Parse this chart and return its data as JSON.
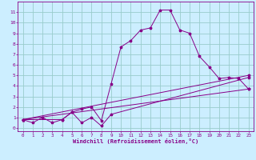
{
  "title": "",
  "xlabel": "Windchill (Refroidissement éolien,°C)",
  "ylabel": "",
  "background_color": "#cceeff",
  "line_color": "#880088",
  "xlim": [
    -0.5,
    23.5
  ],
  "ylim": [
    -0.3,
    12
  ],
  "xticks": [
    0,
    1,
    2,
    3,
    4,
    5,
    6,
    7,
    8,
    9,
    10,
    11,
    12,
    13,
    14,
    15,
    16,
    17,
    18,
    19,
    20,
    21,
    22,
    23
  ],
  "yticks": [
    0,
    1,
    2,
    3,
    4,
    5,
    6,
    7,
    8,
    9,
    10,
    11
  ],
  "grid_color": "#99cccc",
  "lines": [
    {
      "x": [
        0,
        1,
        2,
        3,
        4,
        5,
        6,
        7,
        8,
        9,
        10,
        11,
        12,
        13,
        14,
        15,
        16,
        17,
        18,
        19,
        20,
        21,
        22,
        23
      ],
      "y": [
        0.8,
        0.5,
        1.0,
        0.5,
        0.8,
        1.5,
        1.8,
        2.0,
        0.7,
        4.2,
        7.7,
        8.3,
        9.3,
        9.5,
        11.2,
        11.2,
        9.3,
        9.0,
        6.8,
        5.8,
        4.7,
        4.8,
        4.7,
        3.7
      ]
    },
    {
      "x": [
        0,
        4,
        5,
        6,
        7,
        8,
        9,
        23
      ],
      "y": [
        0.8,
        0.8,
        1.5,
        0.5,
        1.0,
        0.2,
        1.3,
        4.8
      ]
    },
    {
      "x": [
        0,
        23
      ],
      "y": [
        0.8,
        5.0
      ]
    },
    {
      "x": [
        0,
        23
      ],
      "y": [
        0.8,
        3.7
      ]
    }
  ]
}
